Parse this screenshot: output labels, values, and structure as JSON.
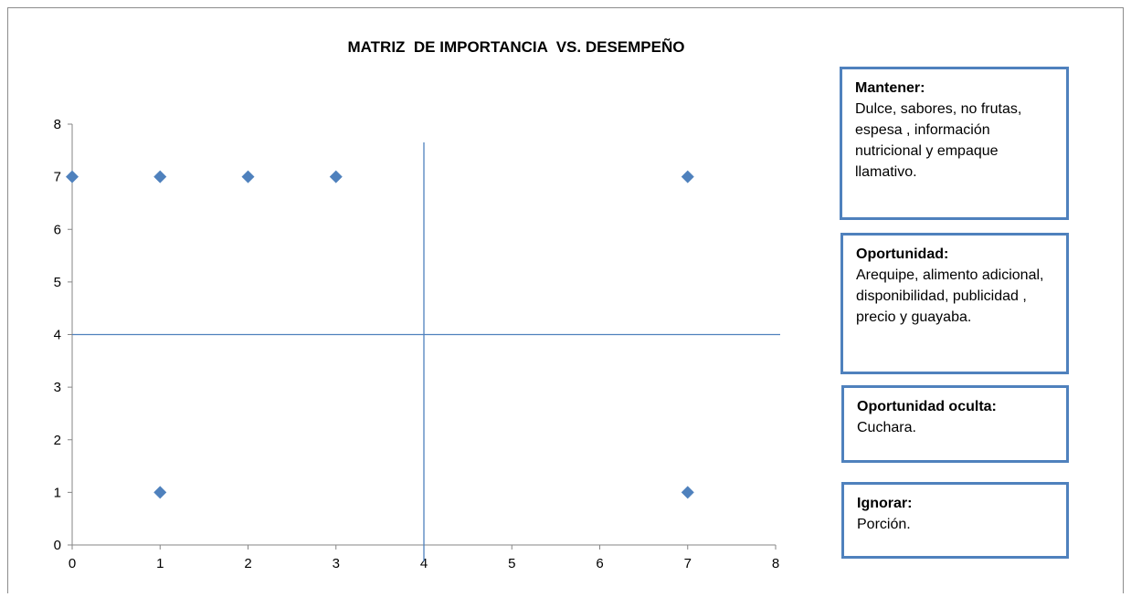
{
  "chart_data": {
    "type": "scatter",
    "title": "MATRIZ  DE IMPORTANCIA  VS. DESEMPEÑO",
    "xlabel": "",
    "ylabel": "",
    "xlim": [
      0,
      8
    ],
    "ylim": [
      0,
      8
    ],
    "x_ticks": [
      "0",
      "1",
      "2",
      "3",
      "4",
      "5",
      "6",
      "7",
      "8"
    ],
    "y_ticks": [
      "0",
      "1",
      "2",
      "3",
      "4",
      "5",
      "6",
      "7",
      "8"
    ],
    "grid": false,
    "marker": "diamond",
    "series": [
      {
        "points": [
          {
            "x": 0,
            "y": 7
          },
          {
            "x": 1,
            "y": 7
          },
          {
            "x": 2,
            "y": 7
          },
          {
            "x": 3,
            "y": 7
          },
          {
            "x": 7,
            "y": 7
          },
          {
            "x": 1,
            "y": 1
          },
          {
            "x": 7,
            "y": 1
          }
        ]
      }
    ],
    "reference_lines": [
      {
        "orientation": "vertical",
        "x": 4
      },
      {
        "orientation": "horizontal",
        "y": 4
      }
    ],
    "colors": {
      "marker": "#4f81bd",
      "reference_line": "#4f81bd",
      "axis": "#868686",
      "box_border": "#4f81bd"
    }
  },
  "annotations": [
    {
      "title": "Mantener:",
      "text": "Dulce, sabores,  no frutas, espesa , información nutricional y empaque llamativo."
    },
    {
      "title": "Oportunidad:",
      "text": "Arequipe, alimento adicional, disponibilidad, publicidad , precio y guayaba."
    },
    {
      "title": "Oportunidad oculta:",
      "text": "Cuchara."
    },
    {
      "title": "Ignorar:",
      "text": "Porción."
    }
  ]
}
